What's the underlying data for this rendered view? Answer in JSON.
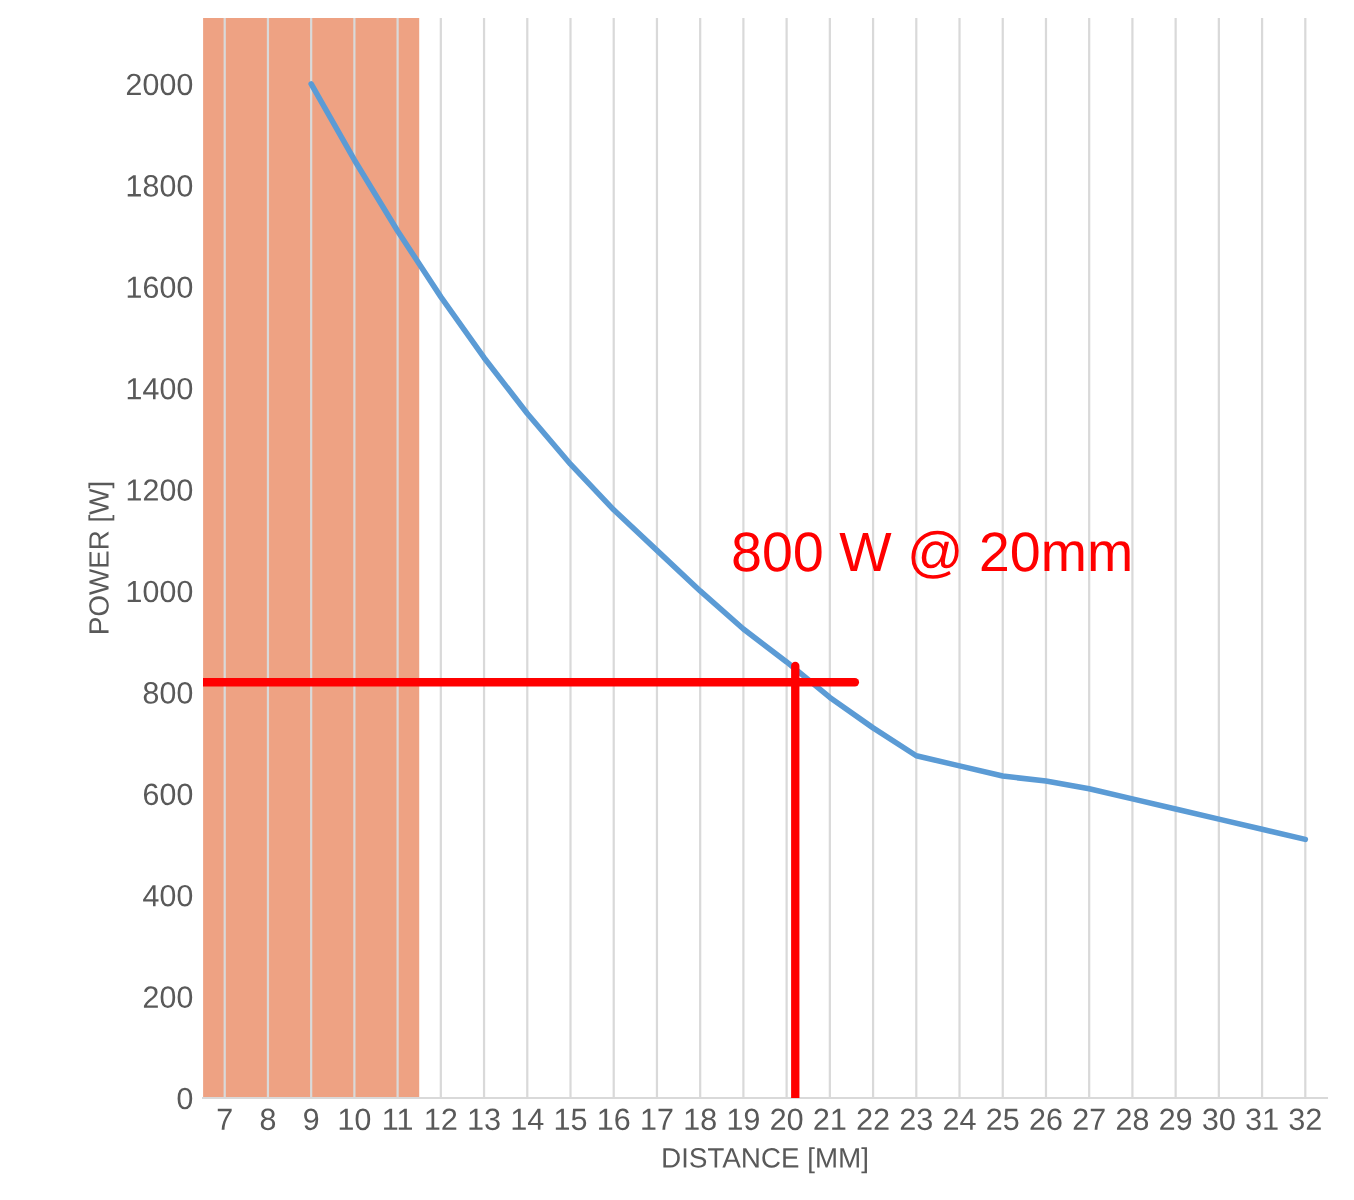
{
  "chart_data": {
    "type": "line",
    "xlabel": "DISTANCE [MM]",
    "ylabel": "POWER [W]",
    "x": [
      9,
      10,
      11,
      12,
      13,
      14,
      15,
      16,
      17,
      18,
      19,
      20,
      21,
      22,
      23,
      24,
      25,
      26,
      27,
      28,
      29,
      30,
      31,
      32
    ],
    "series": [
      {
        "color": "#5b9bd5",
        "values": [
          2000,
          1850,
          1710,
          1580,
          1460,
          1350,
          1250,
          1160,
          1080,
          1000,
          925,
          860,
          790,
          730,
          675,
          655,
          635,
          625,
          610,
          590,
          570,
          550,
          530,
          510
        ]
      }
    ],
    "xlim": [
      6.5,
      32.5
    ],
    "xticks": [
      7,
      8,
      9,
      10,
      11,
      12,
      13,
      14,
      15,
      16,
      17,
      18,
      19,
      20,
      21,
      22,
      23,
      24,
      25,
      26,
      27,
      28,
      29,
      30,
      31,
      32
    ],
    "ylim": [
      0,
      2130
    ],
    "yticks": [
      0,
      200,
      400,
      600,
      800,
      1000,
      1200,
      1400,
      1600,
      1800,
      2000
    ],
    "grid": "x",
    "marker": "none",
    "line_style": "solid",
    "bands": [
      {
        "axis": "x",
        "from": 6.5,
        "to": 11.5,
        "color": "#eea283"
      }
    ],
    "ref_lines": [
      {
        "axis": "y",
        "value": 820,
        "color": "#ff0000"
      },
      {
        "axis": "x",
        "value": 20.2,
        "color": "#ff0000"
      }
    ],
    "annotations": [
      {
        "text": "800 W @ 20mm",
        "x": 20,
        "y": 820
      }
    ]
  }
}
